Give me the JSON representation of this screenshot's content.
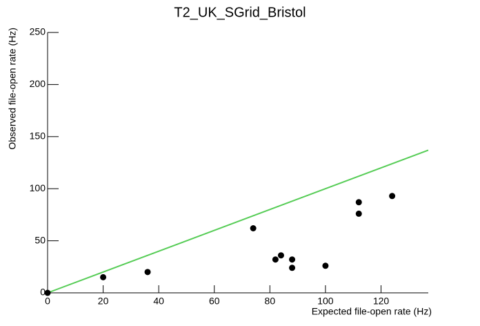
{
  "chart_data": {
    "type": "scatter",
    "title": "T2_UK_SGrid_Bristol",
    "x_label": "Expected file-open rate (Hz)",
    "y_label": "Observed file-open rate (Hz)",
    "series": [
      {
        "mode": "markers",
        "color": "#000000",
        "x": [
          0,
          20,
          36,
          74,
          82,
          84,
          88,
          88,
          100,
          112,
          112,
          124
        ],
        "values": [
          0,
          15,
          20,
          62,
          32,
          36,
          32,
          24,
          26,
          87,
          76,
          93
        ]
      },
      {
        "mode": "line",
        "color": "#55cc55",
        "x": [
          0,
          137
        ],
        "values": [
          0,
          137
        ]
      }
    ],
    "xlim": [
      0,
      137
    ],
    "ylim": [
      0,
      250
    ],
    "xticks": [
      0,
      20,
      40,
      60,
      80,
      100,
      120
    ],
    "yticks": [
      0,
      50,
      100,
      150,
      200,
      250
    ],
    "grid": false
  }
}
